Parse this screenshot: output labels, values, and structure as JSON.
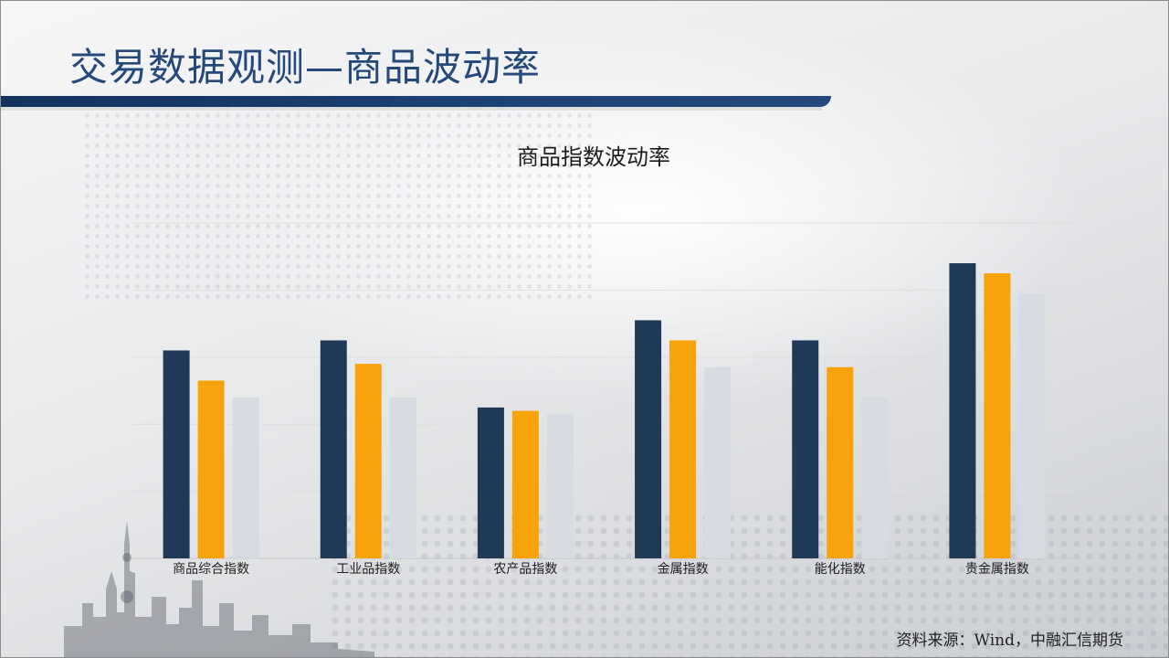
{
  "slide": {
    "title": "交易数据观测—商品波动率",
    "source": "资料来源：Wind，中融汇信期货"
  },
  "colors": {
    "series": [
      "#1f3a57",
      "#f8a20c",
      "#d6dbe2"
    ],
    "title": "#24497a",
    "band": "#1c4275"
  },
  "chart_data": {
    "type": "bar",
    "title": "商品指数波动率",
    "xlabel": "",
    "ylabel": "",
    "categories": [
      "商品综合指数",
      "工业品指数",
      "农产品指数",
      "金属指数",
      "能化指数",
      "贵金属指数"
    ],
    "series": [
      {
        "values": [
          31,
          32.5,
          22.5,
          35.5,
          32.5,
          44
        ]
      },
      {
        "values": [
          26.5,
          29,
          22,
          32.5,
          28.5,
          42.5
        ]
      },
      {
        "values": [
          24,
          24,
          21.5,
          28.5,
          24,
          39.5
        ]
      }
    ],
    "ylim": [
      0,
      50
    ],
    "y_gridlines": [
      0,
      10,
      20,
      30,
      40,
      50
    ],
    "y_tick_labels_visible": false,
    "grid": true,
    "legend": "none"
  }
}
